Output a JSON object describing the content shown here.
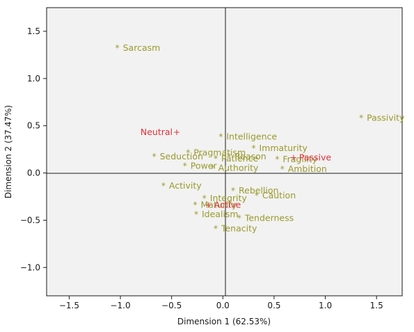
{
  "chart_data": {
    "type": "scatter",
    "title": "",
    "xlabel": "Dimension 1 (62.53%)",
    "ylabel": "Dimension 2 (37.47%)",
    "xlim": [
      -1.72,
      1.75
    ],
    "ylim": [
      -1.3,
      1.75
    ],
    "xticks": [
      "−1.5",
      "−1.0",
      "−0.5",
      "0.0",
      "0.5",
      "1.0",
      "1.5"
    ],
    "yticks": [
      "−1.0",
      "−0.5",
      "0.0",
      "0.5",
      "1.0",
      "1.5"
    ],
    "grid": false,
    "legend": "none",
    "colors": {
      "trait": "#9a9a2e",
      "supplementary": "#e0303a",
      "background": "#f2f2f2",
      "axis": "#1a1a1a"
    },
    "series": [
      {
        "kind": "trait",
        "marker": "*",
        "points": [
          {
            "label": "Sarcasm",
            "x": -1.03,
            "y": 1.33
          },
          {
            "label": "Passivity",
            "x": 1.35,
            "y": 0.59
          },
          {
            "label": "Intelligence",
            "x": -0.02,
            "y": 0.39
          },
          {
            "label": "Pragmatism",
            "x": -0.34,
            "y": 0.22
          },
          {
            "label": "Immaturity",
            "x": 0.3,
            "y": 0.27
          },
          {
            "label": "Seduction",
            "x": -0.67,
            "y": 0.18
          },
          {
            "label": "Reason",
            "x": 0.06,
            "y": 0.18
          },
          {
            "label": "Patience",
            "x": -0.07,
            "y": 0.16
          },
          {
            "label": "Power",
            "x": -0.37,
            "y": 0.08
          },
          {
            "label": "Fragility",
            "x": 0.53,
            "y": 0.15
          },
          {
            "label": "Authority",
            "x": -0.1,
            "y": 0.06
          },
          {
            "label": "Ambition",
            "x": 0.58,
            "y": 0.05
          },
          {
            "label": "Activity",
            "x": -0.58,
            "y": -0.13
          },
          {
            "label": "Rebellion",
            "x": 0.1,
            "y": -0.18
          },
          {
            "label": "Integrity",
            "x": -0.18,
            "y": -0.26
          },
          {
            "label": "Caution",
            "x": 0.33,
            "y": -0.23
          },
          {
            "label": "Maturity",
            "x": -0.27,
            "y": -0.33
          },
          {
            "label": "Idealism",
            "x": -0.26,
            "y": -0.43
          },
          {
            "label": "Tenderness",
            "x": 0.16,
            "y": -0.47
          },
          {
            "label": "Tenacity",
            "x": -0.07,
            "y": -0.58
          }
        ]
      },
      {
        "kind": "supplementary",
        "marker": "+",
        "points": [
          {
            "label": "Neutral",
            "x": -0.45,
            "y": 0.44
          },
          {
            "label": "Passive",
            "x": 0.69,
            "y": 0.17
          },
          {
            "label": "Active",
            "x": -0.14,
            "y": -0.33
          }
        ]
      }
    ]
  }
}
